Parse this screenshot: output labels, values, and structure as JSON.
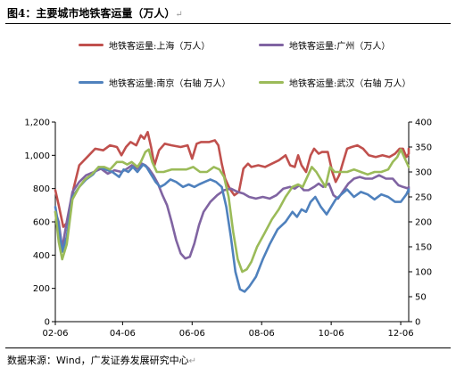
{
  "header": {
    "title": "图4：主要城市地铁客运量（万人）"
  },
  "footer": {
    "source": "数据来源：Wind，广发证券发展研究中心"
  },
  "colors": {
    "shanghai": "#c0504d",
    "guangzhou": "#8064a2",
    "nanjing": "#4f81bd",
    "wuhan": "#9bbb59"
  },
  "chart_data": {
    "type": "line",
    "title": "",
    "xlabel": "",
    "ylabel": "",
    "x_ticks": [
      "02-06",
      "04-06",
      "06-06",
      "08-06",
      "10-06",
      "12-06"
    ],
    "x_tick_days": [
      0,
      59,
      120,
      181,
      242,
      303
    ],
    "x_range_days": [
      0,
      310
    ],
    "y_left": {
      "range": [
        0,
        1200
      ],
      "ticks": [
        "0",
        "200",
        "400",
        "600",
        "800",
        "1,000",
        "1,200"
      ],
      "tick_values": [
        0,
        200,
        400,
        600,
        800,
        1000,
        1200
      ]
    },
    "y_right": {
      "range": [
        0,
        400
      ],
      "ticks": [
        "0",
        "50",
        "100",
        "150",
        "200",
        "250",
        "300",
        "350",
        "400"
      ],
      "tick_values": [
        0,
        50,
        100,
        150,
        200,
        250,
        300,
        350,
        400
      ]
    },
    "legend": [
      "地铁客运量:上海（万人）",
      "地铁客运量:广州（万人）",
      "地铁客运量:南京（右轴 万人）",
      "地铁客运量:武汉（右轴 万人）"
    ],
    "series": [
      {
        "name": "地铁客运量:上海（万人）",
        "axis": "left",
        "color": "#c0504d",
        "points": [
          [
            0,
            790
          ],
          [
            3,
            700
          ],
          [
            7,
            570
          ],
          [
            11,
            600
          ],
          [
            16,
            800
          ],
          [
            21,
            940
          ],
          [
            28,
            990
          ],
          [
            35,
            1040
          ],
          [
            42,
            1030
          ],
          [
            48,
            1060
          ],
          [
            54,
            1050
          ],
          [
            58,
            1000
          ],
          [
            62,
            1050
          ],
          [
            66,
            1080
          ],
          [
            71,
            1060
          ],
          [
            75,
            1120
          ],
          [
            78,
            1100
          ],
          [
            81,
            1140
          ],
          [
            84,
            1050
          ],
          [
            87,
            940
          ],
          [
            91,
            1030
          ],
          [
            96,
            1070
          ],
          [
            102,
            1060
          ],
          [
            110,
            1050
          ],
          [
            116,
            1060
          ],
          [
            120,
            980
          ],
          [
            124,
            1070
          ],
          [
            128,
            1080
          ],
          [
            135,
            1080
          ],
          [
            140,
            1090
          ],
          [
            143,
            1060
          ],
          [
            146,
            950
          ],
          [
            149,
            860
          ],
          [
            153,
            800
          ],
          [
            157,
            760
          ],
          [
            161,
            780
          ],
          [
            165,
            920
          ],
          [
            169,
            950
          ],
          [
            172,
            930
          ],
          [
            178,
            940
          ],
          [
            184,
            930
          ],
          [
            190,
            950
          ],
          [
            196,
            970
          ],
          [
            202,
            1000
          ],
          [
            206,
            940
          ],
          [
            210,
            930
          ],
          [
            213,
            1000
          ],
          [
            216,
            940
          ],
          [
            220,
            900
          ],
          [
            224,
            1000
          ],
          [
            227,
            1040
          ],
          [
            231,
            1010
          ],
          [
            234,
            1020
          ],
          [
            239,
            1020
          ],
          [
            243,
            900
          ],
          [
            246,
            840
          ],
          [
            249,
            880
          ],
          [
            252,
            950
          ],
          [
            256,
            1040
          ],
          [
            260,
            1050
          ],
          [
            265,
            1060
          ],
          [
            270,
            1040
          ],
          [
            275,
            1000
          ],
          [
            281,
            990
          ],
          [
            287,
            1000
          ],
          [
            293,
            990
          ],
          [
            298,
            1010
          ],
          [
            302,
            1040
          ],
          [
            305,
            1040
          ],
          [
            308,
            990
          ],
          [
            312,
            1010
          ],
          [
            316,
            1040
          ]
        ]
      },
      {
        "name": "地铁客运量:广州（万人）",
        "axis": "left",
        "color": "#8064a2",
        "points": [
          [
            0,
            660
          ],
          [
            3,
            600
          ],
          [
            6,
            440
          ],
          [
            10,
            600
          ],
          [
            15,
            780
          ],
          [
            21,
            840
          ],
          [
            27,
            880
          ],
          [
            34,
            900
          ],
          [
            40,
            920
          ],
          [
            46,
            890
          ],
          [
            52,
            910
          ],
          [
            58,
            900
          ],
          [
            63,
            920
          ],
          [
            67,
            940
          ],
          [
            72,
            920
          ],
          [
            76,
            950
          ],
          [
            79,
            940
          ],
          [
            82,
            920
          ],
          [
            86,
            880
          ],
          [
            90,
            830
          ],
          [
            94,
            760
          ],
          [
            98,
            700
          ],
          [
            102,
            600
          ],
          [
            106,
            490
          ],
          [
            110,
            410
          ],
          [
            114,
            380
          ],
          [
            118,
            390
          ],
          [
            122,
            470
          ],
          [
            126,
            580
          ],
          [
            130,
            660
          ],
          [
            136,
            720
          ],
          [
            142,
            760
          ],
          [
            148,
            790
          ],
          [
            154,
            800
          ],
          [
            160,
            780
          ],
          [
            165,
            770
          ],
          [
            170,
            750
          ],
          [
            176,
            740
          ],
          [
            182,
            750
          ],
          [
            188,
            740
          ],
          [
            194,
            760
          ],
          [
            200,
            800
          ],
          [
            206,
            810
          ],
          [
            210,
            800
          ],
          [
            214,
            820
          ],
          [
            218,
            790
          ],
          [
            222,
            790
          ],
          [
            227,
            810
          ],
          [
            231,
            830
          ],
          [
            235,
            810
          ],
          [
            240,
            830
          ],
          [
            244,
            760
          ],
          [
            248,
            740
          ],
          [
            252,
            780
          ],
          [
            257,
            830
          ],
          [
            262,
            860
          ],
          [
            267,
            870
          ],
          [
            272,
            860
          ],
          [
            278,
            860
          ],
          [
            284,
            880
          ],
          [
            290,
            860
          ],
          [
            296,
            860
          ],
          [
            301,
            820
          ],
          [
            305,
            810
          ],
          [
            310,
            800
          ],
          [
            315,
            810
          ]
        ]
      },
      {
        "name": "地铁客运量:南京（右轴 万人）",
        "axis": "right",
        "color": "#4f81bd",
        "points": [
          [
            0,
            230
          ],
          [
            3,
            190
          ],
          [
            6,
            140
          ],
          [
            10,
            170
          ],
          [
            15,
            250
          ],
          [
            21,
            270
          ],
          [
            27,
            285
          ],
          [
            33,
            295
          ],
          [
            38,
            310
          ],
          [
            44,
            305
          ],
          [
            50,
            300
          ],
          [
            56,
            290
          ],
          [
            60,
            305
          ],
          [
            64,
            300
          ],
          [
            68,
            310
          ],
          [
            72,
            300
          ],
          [
            77,
            315
          ],
          [
            80,
            310
          ],
          [
            84,
            295
          ],
          [
            88,
            280
          ],
          [
            92,
            270
          ],
          [
            96,
            275
          ],
          [
            101,
            285
          ],
          [
            106,
            280
          ],
          [
            112,
            270
          ],
          [
            117,
            275
          ],
          [
            122,
            270
          ],
          [
            126,
            275
          ],
          [
            131,
            280
          ],
          [
            136,
            285
          ],
          [
            141,
            280
          ],
          [
            146,
            270
          ],
          [
            150,
            230
          ],
          [
            154,
            170
          ],
          [
            158,
            100
          ],
          [
            162,
            65
          ],
          [
            166,
            60
          ],
          [
            170,
            70
          ],
          [
            176,
            90
          ],
          [
            182,
            125
          ],
          [
            188,
            155
          ],
          [
            195,
            185
          ],
          [
            202,
            200
          ],
          [
            208,
            220
          ],
          [
            212,
            210
          ],
          [
            216,
            225
          ],
          [
            220,
            220
          ],
          [
            224,
            240
          ],
          [
            228,
            250
          ],
          [
            233,
            230
          ],
          [
            238,
            215
          ],
          [
            242,
            230
          ],
          [
            246,
            245
          ],
          [
            251,
            255
          ],
          [
            256,
            265
          ],
          [
            262,
            250
          ],
          [
            268,
            260
          ],
          [
            274,
            255
          ],
          [
            280,
            245
          ],
          [
            286,
            255
          ],
          [
            292,
            250
          ],
          [
            298,
            240
          ],
          [
            303,
            240
          ],
          [
            308,
            255
          ],
          [
            312,
            265
          ],
          [
            316,
            260
          ]
        ]
      },
      {
        "name": "地铁客运量:武汉（右轴 万人）",
        "axis": "right",
        "color": "#9bbb59",
        "points": [
          [
            0,
            220
          ],
          [
            3,
            160
          ],
          [
            6,
            125
          ],
          [
            10,
            155
          ],
          [
            15,
            245
          ],
          [
            21,
            270
          ],
          [
            26,
            285
          ],
          [
            32,
            295
          ],
          [
            38,
            310
          ],
          [
            43,
            310
          ],
          [
            48,
            305
          ],
          [
            54,
            320
          ],
          [
            59,
            320
          ],
          [
            63,
            315
          ],
          [
            67,
            320
          ],
          [
            72,
            310
          ],
          [
            75,
            320
          ],
          [
            79,
            340
          ],
          [
            82,
            345
          ],
          [
            85,
            320
          ],
          [
            89,
            300
          ],
          [
            95,
            300
          ],
          [
            102,
            305
          ],
          [
            108,
            305
          ],
          [
            115,
            305
          ],
          [
            121,
            310
          ],
          [
            127,
            300
          ],
          [
            133,
            300
          ],
          [
            139,
            310
          ],
          [
            144,
            305
          ],
          [
            148,
            290
          ],
          [
            152,
            250
          ],
          [
            156,
            180
          ],
          [
            160,
            125
          ],
          [
            164,
            100
          ],
          [
            168,
            105
          ],
          [
            172,
            120
          ],
          [
            177,
            150
          ],
          [
            183,
            175
          ],
          [
            190,
            205
          ],
          [
            196,
            225
          ],
          [
            202,
            250
          ],
          [
            208,
            270
          ],
          [
            213,
            275
          ],
          [
            217,
            270
          ],
          [
            221,
            290
          ],
          [
            225,
            310
          ],
          [
            229,
            300
          ],
          [
            233,
            285
          ],
          [
            237,
            270
          ],
          [
            241,
            310
          ],
          [
            245,
            300
          ],
          [
            250,
            300
          ],
          [
            256,
            300
          ],
          [
            262,
            305
          ],
          [
            268,
            300
          ],
          [
            274,
            295
          ],
          [
            280,
            300
          ],
          [
            286,
            300
          ],
          [
            292,
            305
          ],
          [
            296,
            320
          ],
          [
            300,
            330
          ],
          [
            303,
            345
          ],
          [
            307,
            325
          ],
          [
            312,
            310
          ],
          [
            316,
            310
          ]
        ]
      }
    ]
  }
}
